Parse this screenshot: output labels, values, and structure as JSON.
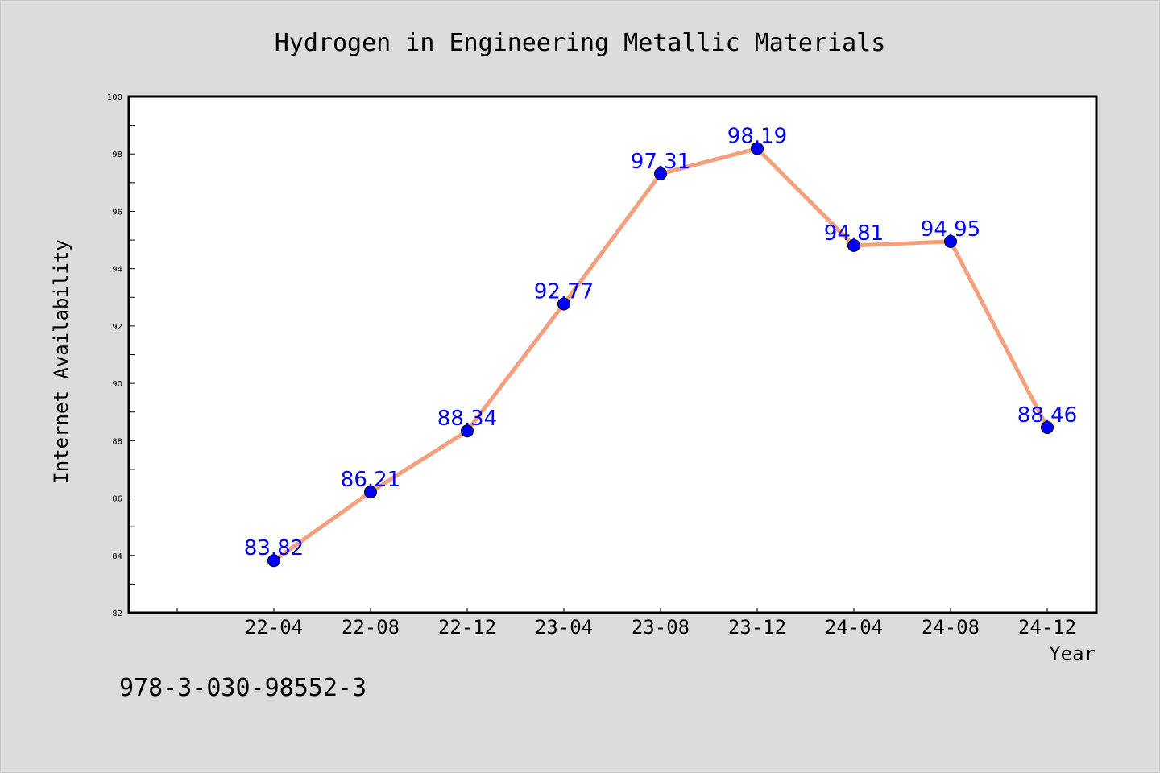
{
  "chart_data": {
    "type": "line",
    "title": "Hydrogen in Engineering Metallic Materials",
    "xlabel": "Year",
    "ylabel": "Internet Availability",
    "categories": [
      "22-04",
      "22-08",
      "22-12",
      "23-04",
      "23-08",
      "23-12",
      "24-04",
      "24-08",
      "24-12"
    ],
    "series": [
      {
        "values": [
          83.82,
          86.21,
          88.34,
          92.77,
          97.31,
          98.19,
          94.81,
          94.95,
          88.46
        ],
        "labels": [
          "83.82",
          "86.21",
          "88.34",
          "92.77",
          "97.31",
          "98.19",
          "94.81",
          "94.95",
          "88.46"
        ]
      }
    ],
    "ylim": [
      82,
      100
    ],
    "yticks": [
      "82",
      "84",
      "86",
      "88",
      "90",
      "92",
      "94",
      "96",
      "98",
      "100"
    ],
    "grid": false,
    "legend": "none"
  },
  "footer": {
    "isbn": "978-3-030-98552-3"
  },
  "colors": {
    "background": "#dcdcdc",
    "plot_background": "#ffffff",
    "line": "#f4a07e",
    "marker": "#0000ff",
    "data_label": "#0000ff"
  }
}
